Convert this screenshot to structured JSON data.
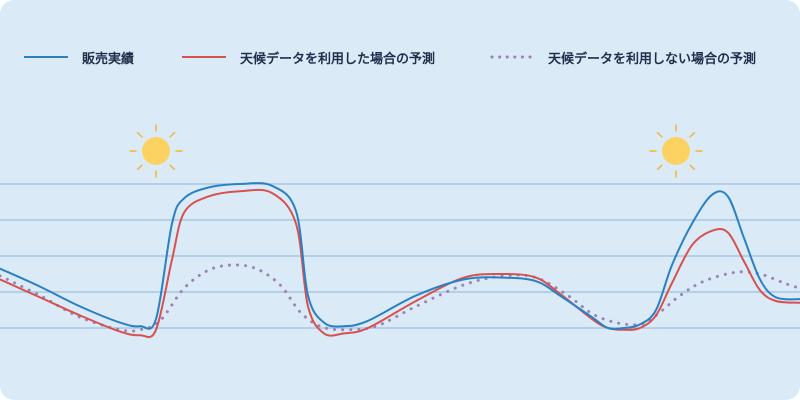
{
  "legend": {
    "items": [
      {
        "label": "販売実績",
        "color": "#2a80c4",
        "style": "solid"
      },
      {
        "label": "天候データを利用した場合の予測",
        "color": "#d7514f",
        "style": "solid"
      },
      {
        "label": "天候データを利用しない場合の予測",
        "color": "#9b83b3",
        "style": "dotted"
      }
    ]
  },
  "icons": {
    "weather_marker": "sun-icon",
    "sun_color": "#fcd262",
    "ray_color": "#f2b43c"
  },
  "chart_data": {
    "type": "line",
    "x_range": [
      0,
      100
    ],
    "y_range": [
      0,
      100
    ],
    "grid": "horizontal",
    "gridline_values": [
      20,
      40,
      60,
      80
    ],
    "legend_position": "top",
    "sun_markers_x": [
      19.5,
      84.5
    ],
    "series": [
      {
        "name": "販売実績",
        "color": "#2a80c4",
        "style": "solid",
        "points": [
          [
            0,
            33
          ],
          [
            5,
            23
          ],
          [
            10,
            12
          ],
          [
            15,
            3
          ],
          [
            17.5,
            1
          ],
          [
            19.5,
            5
          ],
          [
            21.5,
            58
          ],
          [
            23,
            72
          ],
          [
            26,
            78
          ],
          [
            30,
            80
          ],
          [
            34,
            79
          ],
          [
            37,
            65
          ],
          [
            38.5,
            18
          ],
          [
            40.5,
            3
          ],
          [
            43,
            1
          ],
          [
            46,
            4
          ],
          [
            52,
            18
          ],
          [
            58,
            27
          ],
          [
            63,
            28
          ],
          [
            67,
            26
          ],
          [
            70,
            18
          ],
          [
            74,
            6
          ],
          [
            76,
            0
          ],
          [
            78,
            0
          ],
          [
            80,
            2
          ],
          [
            82,
            10
          ],
          [
            84,
            35
          ],
          [
            86.5,
            58
          ],
          [
            89,
            74
          ],
          [
            91,
            73
          ],
          [
            93,
            50
          ],
          [
            95,
            27
          ],
          [
            97,
            17
          ],
          [
            100,
            16
          ]
        ]
      },
      {
        "name": "天候データを利用した場合の予測",
        "color": "#d7514f",
        "style": "solid",
        "points": [
          [
            0,
            27
          ],
          [
            5,
            17
          ],
          [
            10,
            7
          ],
          [
            15,
            -2
          ],
          [
            17.5,
            -4
          ],
          [
            19.5,
            -1
          ],
          [
            21.5,
            38
          ],
          [
            23,
            64
          ],
          [
            26,
            73
          ],
          [
            30,
            76
          ],
          [
            34,
            75
          ],
          [
            37,
            58
          ],
          [
            38.5,
            12
          ],
          [
            40.5,
            -3
          ],
          [
            43,
            -3
          ],
          [
            46,
            0
          ],
          [
            52,
            15
          ],
          [
            58,
            28
          ],
          [
            63,
            30
          ],
          [
            67,
            28
          ],
          [
            70,
            19
          ],
          [
            74,
            5
          ],
          [
            76,
            0
          ],
          [
            78,
            -1
          ],
          [
            80,
            0
          ],
          [
            82,
            7
          ],
          [
            84,
            25
          ],
          [
            86.5,
            46
          ],
          [
            89,
            54
          ],
          [
            91,
            53
          ],
          [
            93,
            37
          ],
          [
            95,
            21
          ],
          [
            97,
            15
          ],
          [
            100,
            14
          ]
        ]
      },
      {
        "name": "天候データを利用しない場合の予測",
        "color": "#9b83b3",
        "style": "dotted",
        "points": [
          [
            0,
            29
          ],
          [
            5,
            18
          ],
          [
            10,
            6
          ],
          [
            15,
            -1
          ],
          [
            17.5,
            -1
          ],
          [
            20,
            4
          ],
          [
            23,
            22
          ],
          [
            26,
            32
          ],
          [
            29,
            35
          ],
          [
            32,
            33
          ],
          [
            35,
            24
          ],
          [
            37.5,
            9
          ],
          [
            40,
            1
          ],
          [
            43,
            -1
          ],
          [
            47,
            1
          ],
          [
            52,
            12
          ],
          [
            58,
            24
          ],
          [
            63,
            29
          ],
          [
            67,
            28
          ],
          [
            71,
            18
          ],
          [
            74,
            8
          ],
          [
            77,
            3
          ],
          [
            80,
            2
          ],
          [
            82,
            7
          ],
          [
            85,
            18
          ],
          [
            88,
            26
          ],
          [
            92,
            31
          ],
          [
            95,
            30
          ],
          [
            98,
            25
          ],
          [
            100,
            22
          ]
        ]
      }
    ]
  }
}
